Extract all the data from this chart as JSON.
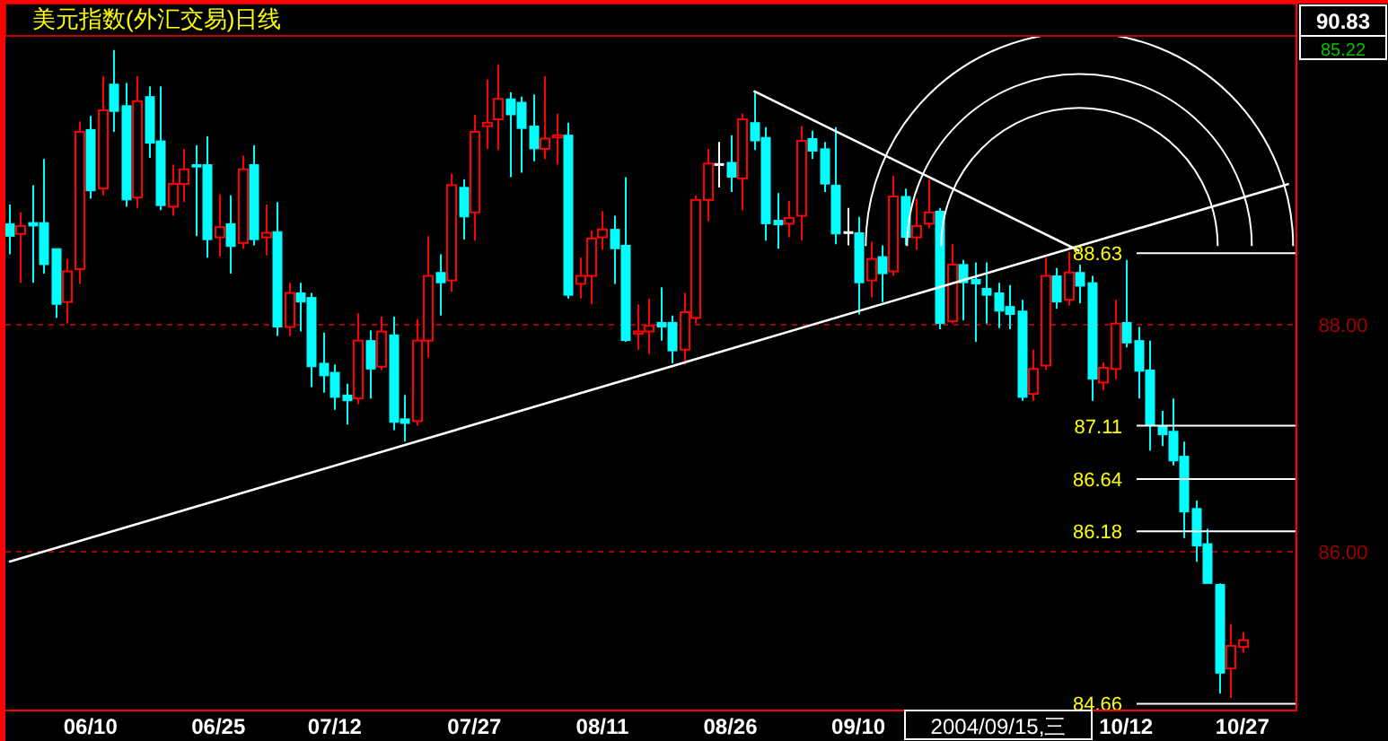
{
  "chart_data": {
    "type": "candlestick",
    "title": "美元指数(外汇交易)日线",
    "categories": [
      null,
      null,
      null,
      null,
      null,
      null,
      null,
      "06/10",
      null,
      null,
      null,
      null,
      null,
      null,
      null,
      null,
      null,
      null,
      "06/25",
      null,
      null,
      null,
      null,
      null,
      null,
      null,
      null,
      null,
      "07/12",
      null,
      null,
      null,
      null,
      null,
      null,
      null,
      null,
      null,
      null,
      null,
      "07/27",
      null,
      null,
      null,
      null,
      null,
      null,
      null,
      null,
      null,
      null,
      "08/11",
      null,
      null,
      null,
      null,
      null,
      null,
      null,
      null,
      null,
      null,
      "08/26",
      null,
      null,
      null,
      null,
      null,
      null,
      null,
      null,
      null,
      null,
      "09/10",
      null,
      null,
      null,
      null,
      null,
      null,
      null,
      null,
      null,
      null,
      null,
      null,
      null,
      null,
      null,
      null,
      null,
      null,
      null,
      null,
      null,
      null,
      "10/12",
      null,
      null,
      null,
      null,
      null,
      null,
      null,
      null,
      null,
      "10/27",
      null,
      null,
      null,
      null
    ],
    "ohlc": [
      [
        88.89,
        89.06,
        88.62,
        88.78
      ],
      [
        88.8,
        88.99,
        88.37,
        88.87
      ],
      [
        88.9,
        89.23,
        88.37,
        88.87
      ],
      [
        88.9,
        89.46,
        88.45,
        88.53
      ],
      [
        88.67,
        88.67,
        88.06,
        88.18
      ],
      [
        88.2,
        88.58,
        88.01,
        88.47
      ],
      [
        88.49,
        89.79,
        88.36,
        89.7
      ],
      [
        89.72,
        89.84,
        89.11,
        89.18
      ],
      [
        89.2,
        90.19,
        89.14,
        89.89
      ],
      [
        90.12,
        90.42,
        89.7,
        89.88
      ],
      [
        89.93,
        90.13,
        89.04,
        89.1
      ],
      [
        89.12,
        90.19,
        89.03,
        89.97
      ],
      [
        90.01,
        90.1,
        89.47,
        89.6
      ],
      [
        89.62,
        90.1,
        89.01,
        89.05
      ],
      [
        89.04,
        89.41,
        88.96,
        89.24
      ],
      [
        89.24,
        89.55,
        89.08,
        89.37
      ],
      [
        89.41,
        89.58,
        88.78,
        89.39
      ],
      [
        89.41,
        89.66,
        88.59,
        88.75
      ],
      [
        88.77,
        89.15,
        88.6,
        88.86
      ],
      [
        88.89,
        89.14,
        88.45,
        88.69
      ],
      [
        88.72,
        89.49,
        88.67,
        89.37
      ],
      [
        89.41,
        89.58,
        88.7,
        88.75
      ],
      [
        88.77,
        89.06,
        88.61,
        88.81
      ],
      [
        88.82,
        89.08,
        87.9,
        87.98
      ],
      [
        87.98,
        88.37,
        87.9,
        88.28
      ],
      [
        88.28,
        88.37,
        87.94,
        88.2
      ],
      [
        88.24,
        88.28,
        87.45,
        87.63
      ],
      [
        87.66,
        87.93,
        87.4,
        87.55
      ],
      [
        87.58,
        87.65,
        87.25,
        87.36
      ],
      [
        87.38,
        87.48,
        87.12,
        87.33
      ],
      [
        87.35,
        88.1,
        87.3,
        87.86
      ],
      [
        87.86,
        87.95,
        87.35,
        87.61
      ],
      [
        87.63,
        88.07,
        87.6,
        87.94
      ],
      [
        87.91,
        88.07,
        87.07,
        87.14
      ],
      [
        87.17,
        87.38,
        86.97,
        87.13
      ],
      [
        87.15,
        88.05,
        87.11,
        87.86
      ],
      [
        87.86,
        88.78,
        87.71,
        88.43
      ],
      [
        88.46,
        88.62,
        88.08,
        88.37
      ],
      [
        88.39,
        89.33,
        88.29,
        89.23
      ],
      [
        89.21,
        89.28,
        88.75,
        88.95
      ],
      [
        88.99,
        89.85,
        88.74,
        89.7
      ],
      [
        89.75,
        90.16,
        89.55,
        89.78
      ],
      [
        89.81,
        90.29,
        89.54,
        89.99
      ],
      [
        89.99,
        90.05,
        89.3,
        89.85
      ],
      [
        89.96,
        90.01,
        89.34,
        89.73
      ],
      [
        89.75,
        90.03,
        89.44,
        89.55
      ],
      [
        89.55,
        90.19,
        89.46,
        89.64
      ],
      [
        89.65,
        89.86,
        89.41,
        89.67
      ],
      [
        89.67,
        89.78,
        88.23,
        88.26
      ],
      [
        88.36,
        88.59,
        88.23,
        88.43
      ],
      [
        88.43,
        88.83,
        88.18,
        88.76
      ],
      [
        88.77,
        89.0,
        88.66,
        88.84
      ],
      [
        88.84,
        88.96,
        88.36,
        88.67
      ],
      [
        88.7,
        89.3,
        87.85,
        87.86
      ],
      [
        87.92,
        88.18,
        87.78,
        87.94
      ],
      [
        87.94,
        88.23,
        87.74,
        87.99
      ],
      [
        88.02,
        88.33,
        87.86,
        87.98
      ],
      [
        88.02,
        88.08,
        87.66,
        87.77
      ],
      [
        87.78,
        88.28,
        87.65,
        88.11
      ],
      [
        88.06,
        89.14,
        88.01,
        89.1
      ],
      [
        89.1,
        89.55,
        88.91,
        89.42
      ],
      [
        89.42,
        89.61,
        89.21,
        89.42
      ],
      [
        89.43,
        89.67,
        89.17,
        89.3
      ],
      [
        89.29,
        89.86,
        89.01,
        89.81
      ],
      [
        89.78,
        90.06,
        89.54,
        89.62
      ],
      [
        89.65,
        89.74,
        88.74,
        88.89
      ],
      [
        88.92,
        89.16,
        88.67,
        88.88
      ],
      [
        88.89,
        89.09,
        88.77,
        88.94
      ],
      [
        88.96,
        89.75,
        88.74,
        89.62
      ],
      [
        89.64,
        89.71,
        89.46,
        89.53
      ],
      [
        89.55,
        89.61,
        89.17,
        89.24
      ],
      [
        89.23,
        89.74,
        88.71,
        88.8
      ],
      [
        88.82,
        89.03,
        88.7,
        88.82
      ],
      [
        88.81,
        88.95,
        88.09,
        88.37
      ],
      [
        88.39,
        88.73,
        88.24,
        88.58
      ],
      [
        88.6,
        88.7,
        88.2,
        88.45
      ],
      [
        88.47,
        89.31,
        88.43,
        89.13
      ],
      [
        89.13,
        89.2,
        88.7,
        88.77
      ],
      [
        88.77,
        89.11,
        88.66,
        88.87
      ],
      [
        88.89,
        89.28,
        88.85,
        88.99
      ],
      [
        89.0,
        89.03,
        87.96,
        88.01
      ],
      [
        88.03,
        88.71,
        88.01,
        88.53
      ],
      [
        88.53,
        88.57,
        88.04,
        88.37
      ],
      [
        88.4,
        88.55,
        87.85,
        88.36
      ],
      [
        88.32,
        88.55,
        88.01,
        88.26
      ],
      [
        88.28,
        88.37,
        87.97,
        88.12
      ],
      [
        88.16,
        88.35,
        87.96,
        88.09
      ],
      [
        88.12,
        88.22,
        87.33,
        87.36
      ],
      [
        87.39,
        87.78,
        87.33,
        87.61
      ],
      [
        87.64,
        88.59,
        87.6,
        88.43
      ],
      [
        88.43,
        88.5,
        88.14,
        88.2
      ],
      [
        88.22,
        88.64,
        88.17,
        88.46
      ],
      [
        88.46,
        88.53,
        88.19,
        88.34
      ],
      [
        88.37,
        88.43,
        87.33,
        87.52
      ],
      [
        87.49,
        87.67,
        87.42,
        87.62
      ],
      [
        87.61,
        88.22,
        87.52,
        88.01
      ],
      [
        88.02,
        88.57,
        87.8,
        87.84
      ],
      [
        87.86,
        87.98,
        87.35,
        87.59
      ],
      [
        87.6,
        87.86,
        86.89,
        87.11
      ],
      [
        87.11,
        87.24,
        86.93,
        87.03
      ],
      [
        87.06,
        87.35,
        86.76,
        86.8
      ],
      [
        86.84,
        86.97,
        86.12,
        86.35
      ],
      [
        86.38,
        86.45,
        85.91,
        86.05
      ],
      [
        86.07,
        86.2,
        85.72,
        85.72
      ],
      [
        85.71,
        85.72,
        84.75,
        84.93
      ],
      [
        84.97,
        85.36,
        84.71,
        85.17
      ],
      [
        85.16,
        85.29,
        85.11,
        85.22
      ],
      null,
      null,
      null,
      null
    ],
    "series": [
      {
        "type": "line",
        "color": "#ffffff",
        "values": [
          85.91,
          null,
          null,
          null,
          null,
          null,
          null,
          null,
          null,
          null,
          null,
          null,
          null,
          null,
          null,
          null,
          null,
          null,
          null,
          null,
          null,
          null,
          null,
          null,
          null,
          null,
          null,
          null,
          null,
          null,
          null,
          null,
          null,
          null,
          null,
          null,
          null,
          null,
          null,
          null,
          null,
          null,
          null,
          null,
          null,
          null,
          null,
          null,
          null,
          null,
          null,
          null,
          null,
          null,
          null,
          null,
          null,
          null,
          null,
          null,
          null,
          null,
          null,
          null,
          null,
          null,
          null,
          null,
          null,
          null,
          null,
          null,
          null,
          null,
          null,
          null,
          null,
          null,
          null,
          null,
          null,
          null,
          null,
          null,
          null,
          null,
          null,
          null,
          null,
          null,
          null,
          null,
          null,
          null,
          null,
          null,
          null,
          null,
          null,
          null,
          null,
          null,
          null,
          null,
          null,
          null,
          null,
          null,
          null,
          null,
          89.24
        ]
      },
      {
        "type": "line",
        "color": "#ffffff",
        "values": [
          null,
          null,
          null,
          null,
          null,
          null,
          null,
          null,
          null,
          null,
          null,
          null,
          null,
          null,
          null,
          null,
          null,
          null,
          null,
          null,
          null,
          null,
          null,
          null,
          null,
          null,
          null,
          null,
          null,
          null,
          null,
          null,
          null,
          null,
          null,
          null,
          null,
          null,
          null,
          null,
          null,
          null,
          null,
          null,
          null,
          null,
          null,
          null,
          null,
          null,
          null,
          null,
          null,
          null,
          null,
          null,
          null,
          null,
          null,
          null,
          null,
          null,
          null,
          null,
          90.06,
          null,
          null,
          null,
          null,
          null,
          null,
          null,
          null,
          null,
          null,
          null,
          null,
          null,
          null,
          null,
          null,
          null,
          null,
          null,
          null,
          null,
          null,
          null,
          null,
          null,
          null,
          null,
          88.65,
          null,
          null,
          null,
          null,
          null,
          null,
          null,
          null,
          null,
          null,
          null,
          null,
          null,
          null,
          null,
          null,
          null,
          null
        ]
      }
    ],
    "ylim": [
      84.6,
      90.83
    ],
    "yticks": [
      {
        "value": 90.83,
        "label": "90.83"
      },
      {
        "value": 88,
        "label": "88.00"
      },
      {
        "value": 86,
        "label": "86.00"
      }
    ],
    "grid": "y",
    "ref_lines": [
      {
        "axis": "y",
        "value": 88.63,
        "label": "88.63",
        "color": "#ffffff"
      },
      {
        "axis": "y",
        "value": 87.11,
        "label": "87.11",
        "color": "#ffffff"
      },
      {
        "axis": "y",
        "value": 86.64,
        "label": "86.64",
        "color": "#ffffff"
      },
      {
        "axis": "y",
        "value": 86.18,
        "label": "86.18",
        "color": "#ffffff"
      },
      {
        "axis": "y",
        "value": 84.66,
        "label": "84.66",
        "color": "#ffffff"
      }
    ],
    "annotations": [
      "2004/09/15,三",
      "85.22"
    ]
  }
}
